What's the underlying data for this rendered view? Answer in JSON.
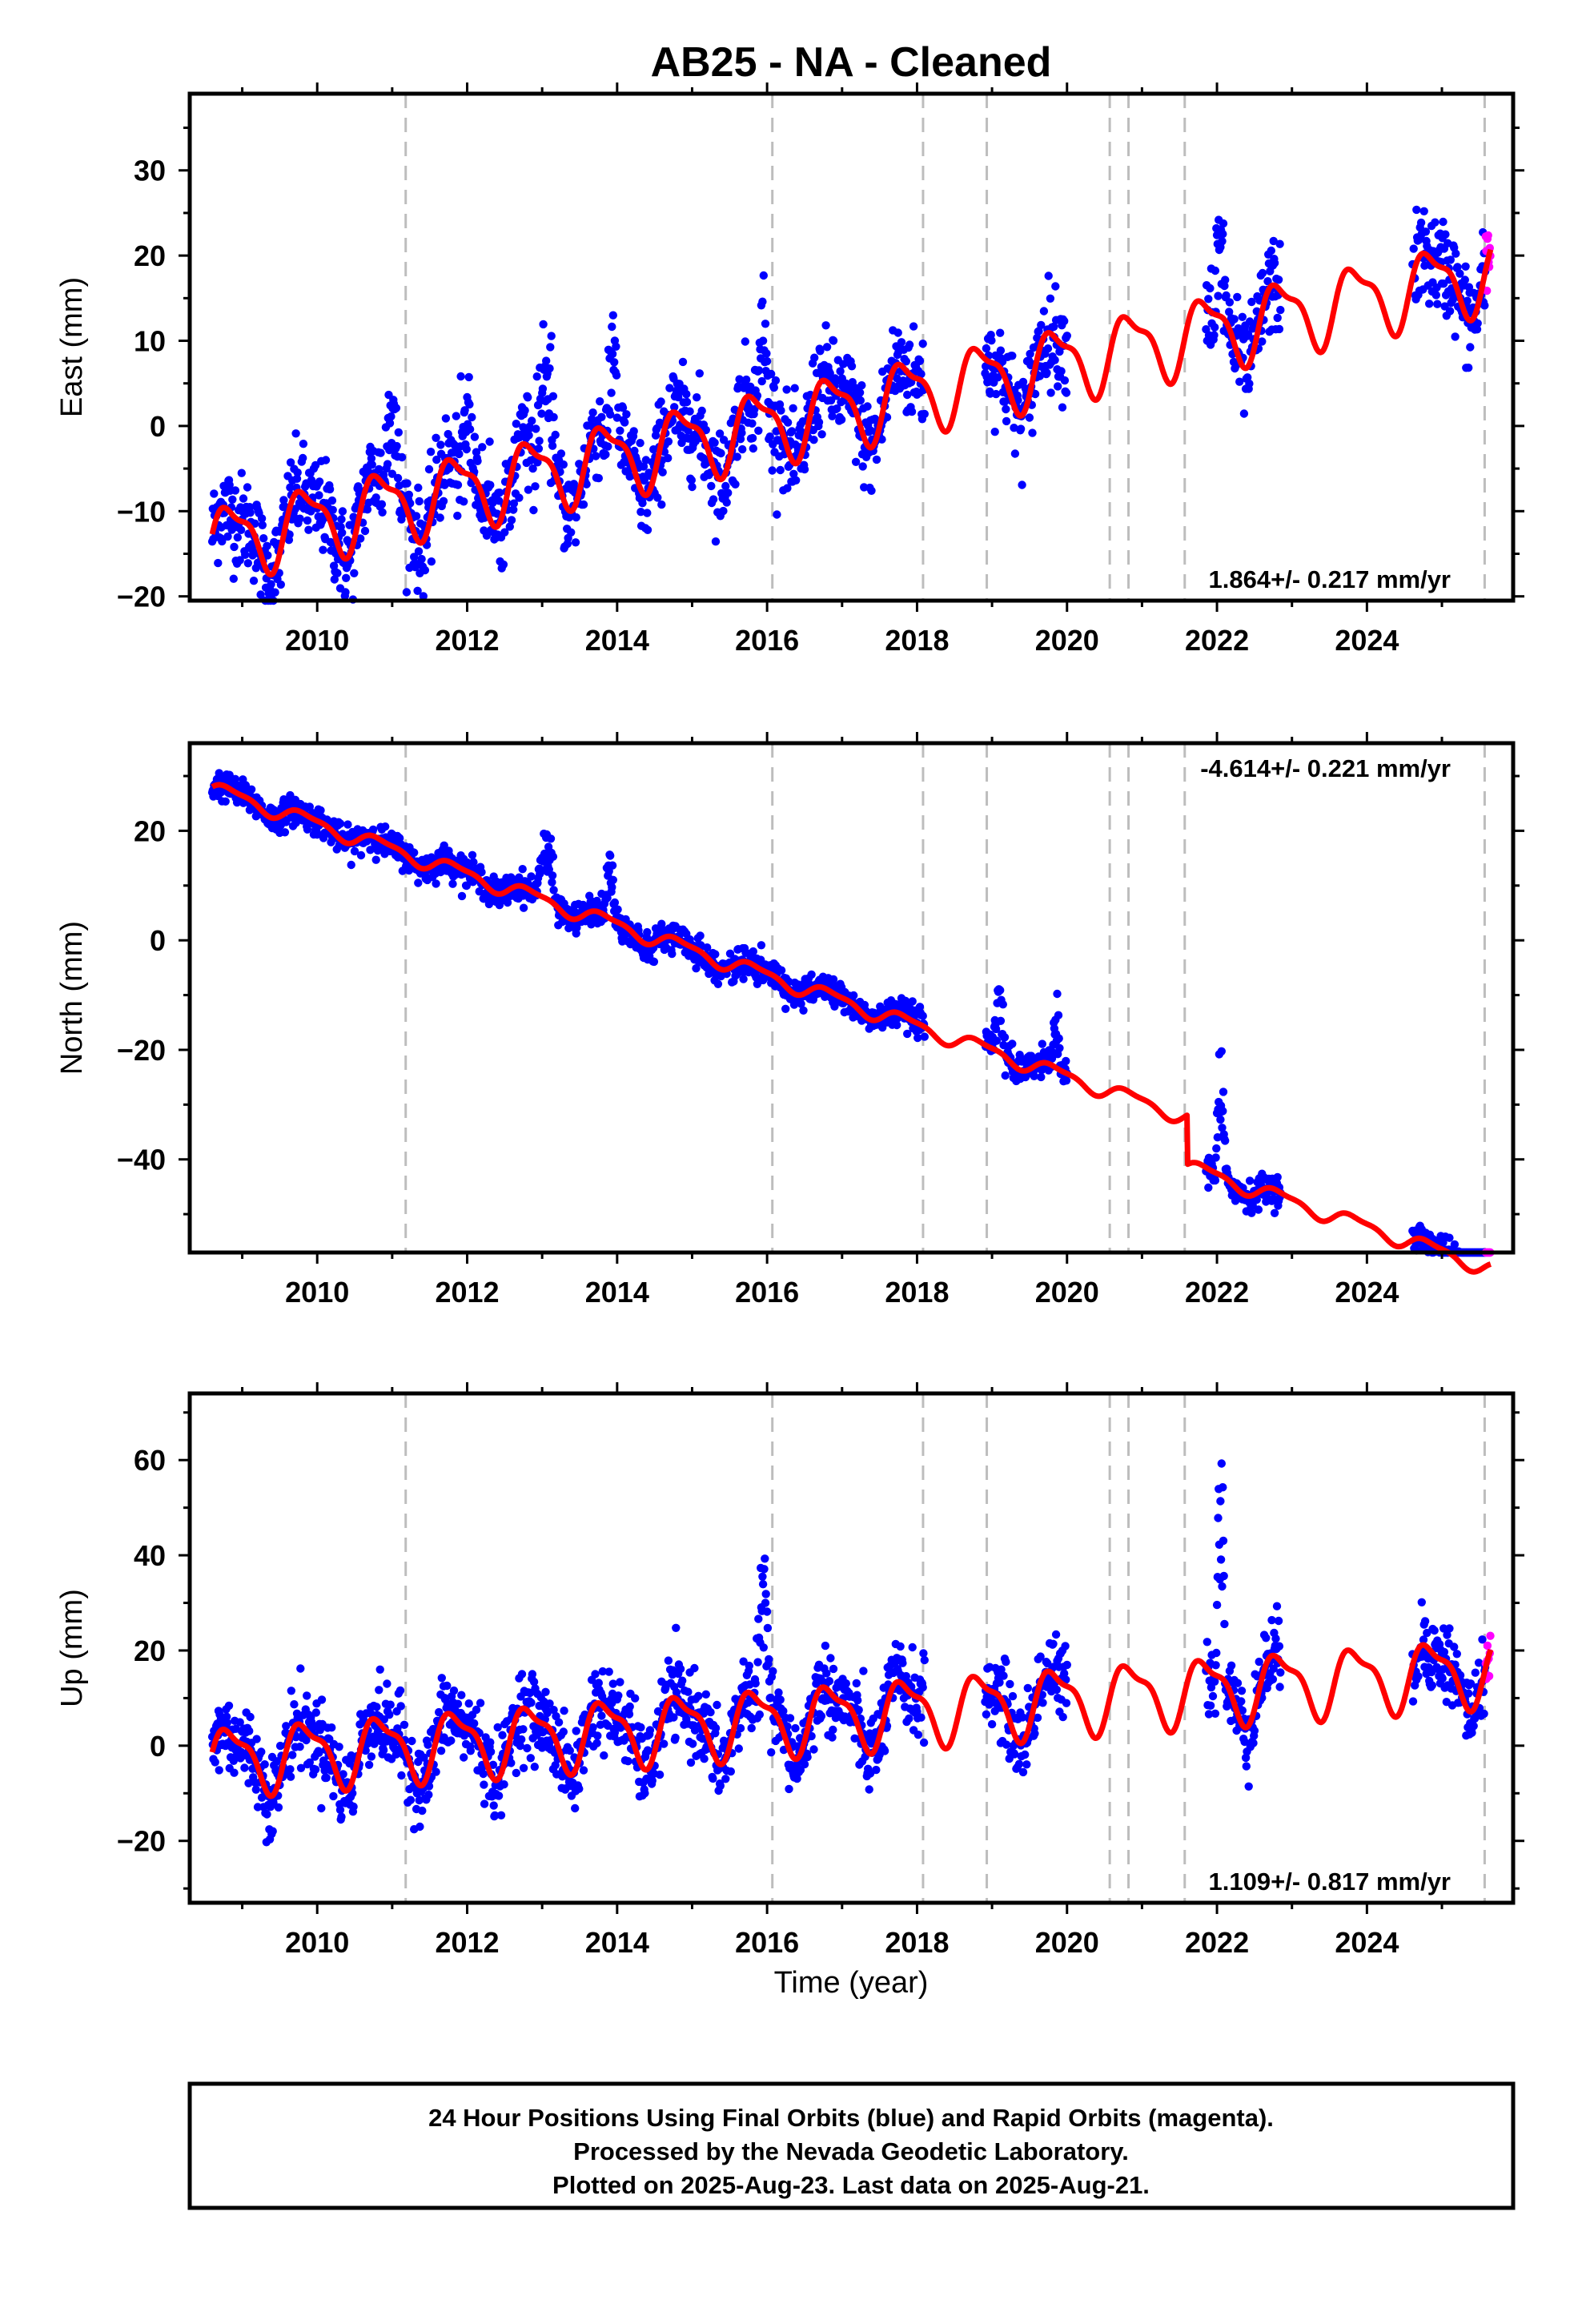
{
  "title": "AB25  - NA - Cleaned",
  "xlabel": "Time (year)",
  "colors": {
    "final_orbits": "#0000ff",
    "rapid_orbits": "#ff00ff",
    "model_fit": "#ff0000",
    "steps": "#bdbdbd",
    "frame": "#000000"
  },
  "info_box": {
    "line1": "24 Hour Positions Using Final Orbits (blue) and Rapid Orbits (magenta).",
    "line2": "Processed by the Nevada Geodetic Laboratory.",
    "line3": "Plotted on 2025-Aug-23. Last data on 2025-Aug-21."
  },
  "chart_data": [
    {
      "type": "scatter",
      "name": "east",
      "ylabel": "East (mm)",
      "xlim": [
        2008.3,
        2025.95
      ],
      "ylim": [
        -20.5,
        39
      ],
      "x_ticks": [
        2010,
        2012,
        2014,
        2016,
        2018,
        2020,
        2022,
        2024
      ],
      "y_ticks": [
        -20,
        -10,
        0,
        10,
        20,
        30
      ],
      "rate_label": "1.864+/- 0.217 mm/yr",
      "rate_position": "bottom-right",
      "grid": false,
      "trend": {
        "rate_mm_per_yr": 1.864,
        "value_at_2008_6": -13.7
      },
      "seasonal_amplitude": 4,
      "steps": [
        2011.18,
        2016.07,
        2018.08,
        2018.93,
        2020.57,
        2020.82,
        2021.57,
        2025.57
      ],
      "data_gaps": [
        [
          2018.1,
          2018.9
        ],
        [
          2020.0,
          2021.85
        ],
        [
          2022.85,
          2024.6
        ]
      ],
      "spikes": [
        {
          "center": 2011.0,
          "width": 0.1,
          "height": 12
        },
        {
          "center": 2012.0,
          "width": 0.12,
          "height": 7
        },
        {
          "center": 2013.05,
          "width": 0.15,
          "height": 12
        },
        {
          "center": 2013.95,
          "width": 0.07,
          "height": 16
        },
        {
          "center": 2015.95,
          "width": 0.07,
          "height": 12
        },
        {
          "center": 2022.05,
          "width": 0.08,
          "height": 14
        }
      ],
      "rapid_orbit_range": [
        2025.58,
        2025.65
      ]
    },
    {
      "type": "scatter",
      "name": "north",
      "ylabel": "North (mm)",
      "xlim": [
        2008.3,
        2025.95
      ],
      "ylim": [
        -57,
        36
      ],
      "x_ticks": [
        2010,
        2012,
        2014,
        2016,
        2018,
        2020,
        2022,
        2024
      ],
      "y_ticks": [
        -40,
        -20,
        0,
        20
      ],
      "rate_label": "-4.614+/- 0.221 mm/yr",
      "rate_position": "top-right",
      "grid": false,
      "trend": {
        "rate_mm_per_yr": -4.614,
        "value_at_2008_6": 27.7
      },
      "seasonal_amplitude": 1.3,
      "steps": [
        2011.18,
        2016.07,
        2018.08,
        2018.93,
        2020.57,
        2020.82,
        2021.57,
        2025.57
      ],
      "step_offsets": [
        {
          "at": 2021.6,
          "offset": -9
        }
      ],
      "data_gaps": [
        [
          2018.1,
          2018.9
        ],
        [
          2020.0,
          2021.85
        ],
        [
          2022.85,
          2024.6
        ]
      ],
      "spikes": [
        {
          "center": 2013.05,
          "width": 0.12,
          "height": 14
        },
        {
          "center": 2013.9,
          "width": 0.07,
          "height": 13
        },
        {
          "center": 2019.1,
          "width": 0.08,
          "height": 12
        },
        {
          "center": 2019.85,
          "width": 0.06,
          "height": 14
        },
        {
          "center": 2022.05,
          "width": 0.07,
          "height": 24
        }
      ],
      "rapid_orbit_range": [
        2025.58,
        2025.65
      ]
    },
    {
      "type": "scatter",
      "name": "up",
      "ylabel": "Up (mm)",
      "xlim": [
        2008.3,
        2025.95
      ],
      "ylim": [
        -33,
        74
      ],
      "x_ticks": [
        2010,
        2012,
        2014,
        2016,
        2018,
        2020,
        2022,
        2024
      ],
      "y_ticks": [
        -20,
        0,
        20,
        40,
        60
      ],
      "rate_label": "1.109+/- 0.817 mm/yr",
      "rate_position": "bottom-right",
      "grid": false,
      "trend": {
        "rate_mm_per_yr": 1.109,
        "value_at_2008_6": -3
      },
      "seasonal_amplitude": 6.5,
      "steps": [
        2011.18,
        2016.07,
        2018.08,
        2018.93,
        2020.57,
        2020.82,
        2021.57,
        2025.57
      ],
      "data_gaps": [
        [
          2018.1,
          2018.9
        ],
        [
          2020.0,
          2021.85
        ],
        [
          2022.85,
          2024.6
        ]
      ],
      "spikes": [
        {
          "center": 2015.95,
          "width": 0.1,
          "height": 28
        },
        {
          "center": 2022.05,
          "width": 0.06,
          "height": 55
        }
      ],
      "rapid_orbit_range": [
        2025.58,
        2025.65
      ]
    }
  ]
}
